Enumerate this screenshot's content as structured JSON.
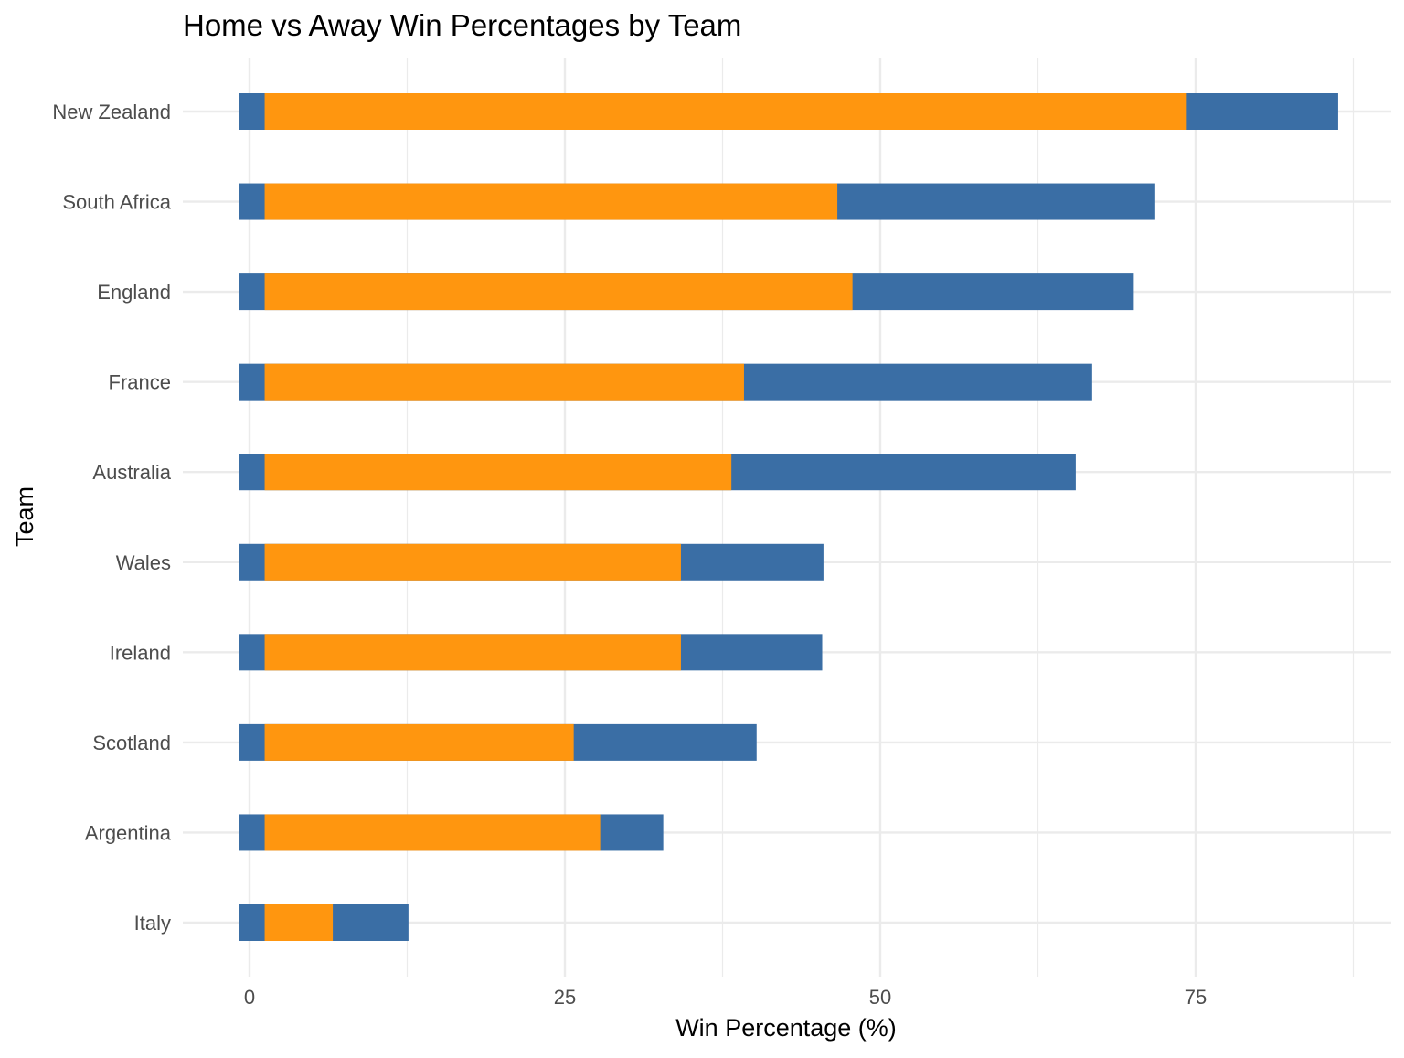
{
  "chart_data": {
    "type": "bar",
    "orientation": "horizontal",
    "title": "Home vs Away Win Percentages by Team",
    "xlabel": "Win Percentage (%)",
    "ylabel": "Team",
    "xlim": [
      -3.3,
      91
    ],
    "xticks": [
      0,
      25,
      50,
      75
    ],
    "x_tick_labels": [
      "0",
      "25",
      "50",
      "75"
    ],
    "grid": true,
    "legend": "none",
    "categories": [
      "New Zealand",
      "South Africa",
      "England",
      "France",
      "Australia",
      "Wales",
      "Ireland",
      "Scotland",
      "Argentina",
      "Italy"
    ],
    "series": [
      {
        "color": "#3A6EA5",
        "start": [
          -0.8,
          -0.8,
          -0.8,
          -0.8,
          -0.8,
          -0.8,
          -0.8,
          -0.8,
          -0.8,
          -0.8
        ],
        "end": [
          86.3,
          71.8,
          70.1,
          66.8,
          65.5,
          45.5,
          45.4,
          40.2,
          32.8,
          12.6
        ]
      },
      {
        "color": "#FF960F",
        "start": [
          1.2,
          1.2,
          1.2,
          1.2,
          1.2,
          1.2,
          1.2,
          1.2,
          1.2,
          1.2
        ],
        "end": [
          74.3,
          46.6,
          47.8,
          39.2,
          38.2,
          34.2,
          34.2,
          25.7,
          27.8,
          6.6
        ]
      }
    ],
    "colors": {
      "panel_background": "#FFFFFF",
      "grid": "#EBEBEB",
      "tick_text": "#4D4D4D"
    }
  }
}
